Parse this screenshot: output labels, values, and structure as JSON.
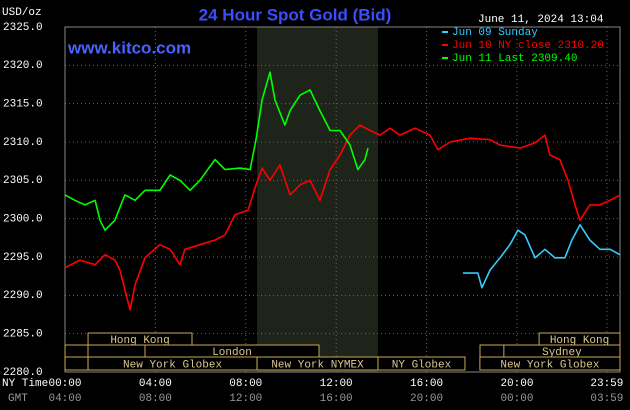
{
  "chart_data": {
    "type": "line",
    "title": "24 Hour Spot Gold (Bid)",
    "unit_label": "USD/oz",
    "timestamp": "June 11, 2024 13:04",
    "watermark": "www.kitco.com",
    "xaxis_label": "NY Time",
    "x2axis_label": "GMT",
    "xlim": [
      0,
      24.56
    ],
    "ylim": [
      2280,
      2325
    ],
    "yticks": [
      {
        "value": 2280,
        "label": "2280.0"
      },
      {
        "value": 2285,
        "label": "2285.0"
      },
      {
        "value": 2290,
        "label": "2290.0"
      },
      {
        "value": 2295,
        "label": "2295.0"
      },
      {
        "value": 2300,
        "label": "2300.0"
      },
      {
        "value": 2305,
        "label": "2305.0"
      },
      {
        "value": 2310,
        "label": "2310.0"
      },
      {
        "value": 2315,
        "label": "2315.0"
      },
      {
        "value": 2320,
        "label": "2320.0"
      },
      {
        "value": 2325,
        "label": "2325.0"
      }
    ],
    "xticks": [
      {
        "value": 0,
        "label": "00:00"
      },
      {
        "value": 4,
        "label": "04:00"
      },
      {
        "value": 8,
        "label": "08:00"
      },
      {
        "value": 12,
        "label": "12:00"
      },
      {
        "value": 16,
        "label": "16:00"
      },
      {
        "value": 20,
        "label": "20:00"
      },
      {
        "value": 23.98,
        "label": "23:59"
      }
    ],
    "x2ticks": [
      {
        "value": 0,
        "label": "04:00"
      },
      {
        "value": 4,
        "label": "08:00"
      },
      {
        "value": 8,
        "label": "12:00"
      },
      {
        "value": 12,
        "label": "16:00"
      },
      {
        "value": 16,
        "label": "20:00"
      },
      {
        "value": 20,
        "label": "00:00"
      },
      {
        "value": 23.98,
        "label": "03:59"
      }
    ],
    "grid": true,
    "shaded": [
      8.5,
      13.85
    ],
    "sessions": [
      {
        "name": "Hong Kong",
        "start": 1.02,
        "end": 5.62,
        "row": 0
      },
      {
        "name": "Hong Kong",
        "start": 20.98,
        "end": 24.56,
        "row": 0
      },
      {
        "name": "London",
        "start": 3.54,
        "end": 11.24,
        "row": 1
      },
      {
        "name": "Sydney",
        "start": 19.42,
        "end": 24.56,
        "row": 1
      },
      {
        "name": "New York Globex",
        "start": 1.02,
        "end": 8.5,
        "row": 2
      },
      {
        "name": "New York NYMEX",
        "start": 8.5,
        "end": 13.85,
        "row": 2
      },
      {
        "name": "NY Globex",
        "start": 13.85,
        "end": 17.7,
        "row": 2
      },
      {
        "name": "New York Globex",
        "start": 18.36,
        "end": 24.56,
        "row": 2
      }
    ],
    "series": [
      {
        "name": "Jun 09 Sunday",
        "color": "#33ccff",
        "x": [
          17.61,
          18.27,
          18.45,
          18.81,
          19.25,
          19.69,
          20.04,
          20.35,
          20.8,
          21.24,
          21.68,
          22.12,
          22.43,
          22.79,
          23.23,
          23.67,
          24.12,
          24.56
        ],
        "values": [
          2292.9,
          2292.9,
          2291,
          2293.3,
          2294.9,
          2296.6,
          2298.5,
          2297.9,
          2294.9,
          2296,
          2294.9,
          2294.9,
          2297.2,
          2299.2,
          2297.2,
          2296,
          2296,
          2295.3
        ]
      },
      {
        "name": "Jun 10 NY close 2310.20",
        "color": "#ff0000",
        "x": [
          0,
          0.66,
          1.33,
          1.77,
          2.21,
          2.43,
          2.65,
          2.88,
          3.1,
          3.54,
          4.2,
          4.65,
          5.09,
          5.31,
          5.97,
          6.64,
          7.08,
          7.52,
          8.1,
          8.45,
          8.72,
          9.07,
          9.51,
          9.96,
          10.4,
          10.84,
          11.28,
          11.73,
          12.17,
          12.61,
          13.05,
          13.5,
          13.94,
          14.38,
          14.82,
          15.49,
          16.15,
          16.5,
          17.04,
          17.92,
          18.81,
          19.25,
          20.13,
          20.8,
          21.24,
          21.46,
          21.9,
          22.26,
          22.57,
          22.79,
          23.23,
          23.67,
          24.12,
          24.56
        ],
        "values": [
          2293.6,
          2294.6,
          2294,
          2295.3,
          2294.6,
          2293.3,
          2290.7,
          2288.1,
          2291.4,
          2294.9,
          2296.6,
          2296,
          2294,
          2296,
          2296.6,
          2297.2,
          2297.9,
          2300.5,
          2301.1,
          2304.4,
          2306.6,
          2305,
          2307,
          2303.1,
          2304.4,
          2305,
          2302.4,
          2306.4,
          2308.3,
          2310.9,
          2312.2,
          2311.5,
          2310.9,
          2311.8,
          2310.9,
          2311.8,
          2310.9,
          2309,
          2310,
          2310.5,
          2310.3,
          2309.6,
          2309.2,
          2309.9,
          2310.9,
          2308.3,
          2307.7,
          2305,
          2301.8,
          2299.8,
          2301.8,
          2301.8,
          2302.4,
          2303.1
        ]
      },
      {
        "name": "Jun 11 Last 2309.40",
        "color": "#00ff00",
        "x": [
          0,
          0.44,
          0.88,
          1.33,
          1.55,
          1.77,
          2.21,
          2.65,
          3.1,
          3.54,
          4.2,
          4.65,
          5.09,
          5.53,
          5.97,
          6.64,
          7.08,
          7.74,
          8.19,
          8.45,
          8.72,
          9.07,
          9.29,
          9.73,
          9.96,
          10.4,
          10.84,
          11.28,
          11.73,
          12.17,
          12.61,
          12.96,
          13.27,
          13.41
        ],
        "values": [
          2303.1,
          2302.4,
          2301.8,
          2302.4,
          2299.8,
          2298.5,
          2299.8,
          2303.1,
          2302.4,
          2303.7,
          2303.7,
          2305.7,
          2305,
          2303.7,
          2305,
          2307.7,
          2306.4,
          2306.6,
          2306.4,
          2310.3,
          2315.5,
          2319.1,
          2315.5,
          2312.2,
          2314.1,
          2316.1,
          2316.8,
          2314.1,
          2311.5,
          2311.5,
          2309.6,
          2306.4,
          2307.7,
          2309.2
        ]
      }
    ]
  }
}
